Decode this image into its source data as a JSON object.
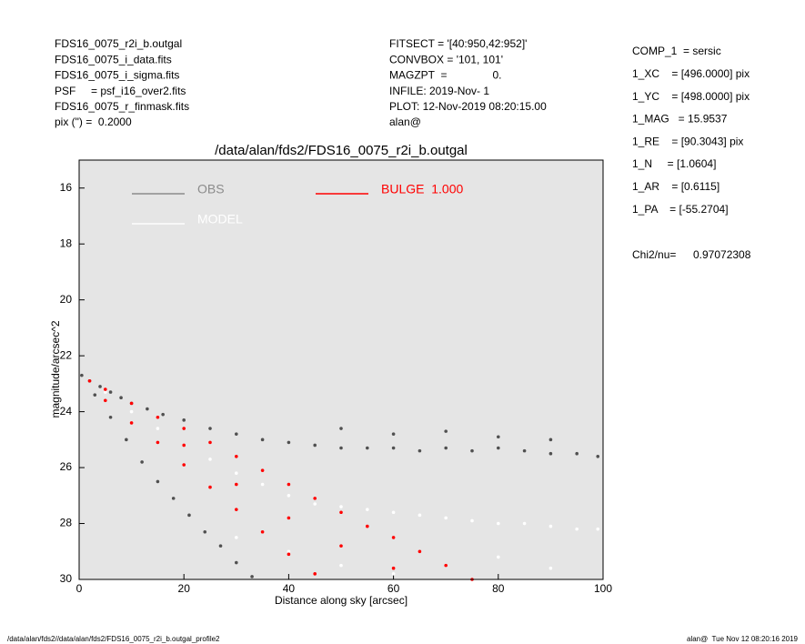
{
  "header_left": [
    "FDS16_0075_r2i_b.outgal",
    "FDS16_0075_i_data.fits",
    "FDS16_0075_i_sigma.fits",
    "PSF     = psf_i16_over2.fits",
    "FDS16_0075_r_finmask.fits",
    "pix (\") =  0.2000"
  ],
  "header_middle": [
    "FITSECT = '[40:950,42:952]'",
    "CONVBOX = '101, 101'",
    "MAGZPT  =               0.",
    "INFILE: 2019-Nov- 1",
    "PLOT: 12-Nov-2019 08:20:15.00",
    "alan@"
  ],
  "parameters": [
    "COMP_1  = sersic",
    "1_XC    = [496.0000] pix",
    "1_YC    = [498.0000] pix",
    "1_MAG   = 15.9537",
    "1_RE    = [90.3043] pix",
    "1_N     = [1.0604]",
    "1_AR    = [0.6115]",
    "1_PA    = [-55.2704]"
  ],
  "chi2_label": "Chi2/nu=",
  "chi2_value": "0.97072308",
  "footer_left": "/data/alan/fds2//data/alan/fds2/FDS16_0075_r2i_b.outgal_profile2",
  "footer_right": "alan@  Tue Nov 12 08:20:16 2019",
  "chart_data": {
    "type": "scatter",
    "title": "/data/alan/fds2/FDS16_0075_r2i_b.outgal",
    "x_label": "Distance along sky [arcsec]",
    "y_label": "magnitude/arcsec^2",
    "xlim": [
      0,
      100
    ],
    "ylim": [
      30,
      15
    ],
    "xticks": [
      0,
      20,
      40,
      60,
      80,
      100
    ],
    "yticks": [
      16,
      18,
      20,
      22,
      24,
      26,
      28,
      30
    ],
    "background": "#e5e5e5",
    "series": [
      {
        "name": "OBS",
        "color": "#505050",
        "legend_color": "#8c8c8c",
        "x": [
          0.5,
          2,
          4,
          6,
          8,
          10,
          13,
          16,
          20,
          25,
          30,
          35,
          40,
          45,
          50,
          55,
          60,
          65,
          70,
          75,
          80,
          85,
          90,
          95,
          99,
          3,
          6,
          9,
          12,
          15,
          18,
          21,
          24,
          27,
          30,
          33,
          50,
          60,
          70,
          80,
          90
        ],
        "values": [
          22.7,
          22.9,
          23.1,
          23.3,
          23.5,
          23.7,
          23.9,
          24.1,
          24.3,
          24.6,
          24.8,
          25.0,
          25.1,
          25.2,
          25.3,
          25.3,
          25.3,
          25.4,
          25.3,
          25.4,
          25.3,
          25.4,
          25.5,
          25.5,
          25.6,
          23.4,
          24.2,
          25.0,
          25.8,
          26.5,
          27.1,
          27.7,
          28.3,
          28.8,
          29.4,
          29.9,
          24.6,
          24.8,
          24.7,
          24.9,
          25.0
        ]
      },
      {
        "name": "MODEL",
        "color": "#ffffff",
        "legend_color": "#ffffff",
        "x": [
          5,
          10,
          15,
          20,
          25,
          30,
          35,
          40,
          45,
          50,
          55,
          60,
          65,
          70,
          75,
          80,
          85,
          90,
          95,
          99,
          30,
          40,
          50,
          60,
          70,
          80,
          90
        ],
        "values": [
          23.3,
          24.0,
          24.6,
          25.2,
          25.7,
          26.2,
          26.6,
          27.0,
          27.3,
          27.4,
          27.5,
          27.6,
          27.7,
          27.8,
          27.9,
          28.0,
          28.0,
          28.1,
          28.2,
          28.2,
          28.5,
          29.0,
          29.5,
          29.8,
          29.5,
          29.2,
          29.6
        ]
      },
      {
        "name": "BULGE  1.000",
        "color": "#ff0000",
        "legend_color": "#ff0000",
        "x": [
          2,
          5,
          10,
          15,
          20,
          25,
          30,
          35,
          40,
          45,
          50,
          55,
          60,
          65,
          70,
          75,
          5,
          10,
          15,
          20,
          25,
          30,
          35,
          40,
          45,
          20,
          30,
          40,
          50,
          60
        ],
        "values": [
          22.9,
          23.2,
          23.7,
          24.2,
          24.6,
          25.1,
          25.6,
          26.1,
          26.6,
          27.1,
          27.6,
          28.1,
          28.5,
          29.0,
          29.5,
          30.0,
          23.6,
          24.4,
          25.1,
          25.9,
          26.7,
          27.5,
          28.3,
          29.1,
          29.8,
          25.2,
          26.6,
          27.8,
          28.8,
          29.6
        ]
      }
    ]
  }
}
